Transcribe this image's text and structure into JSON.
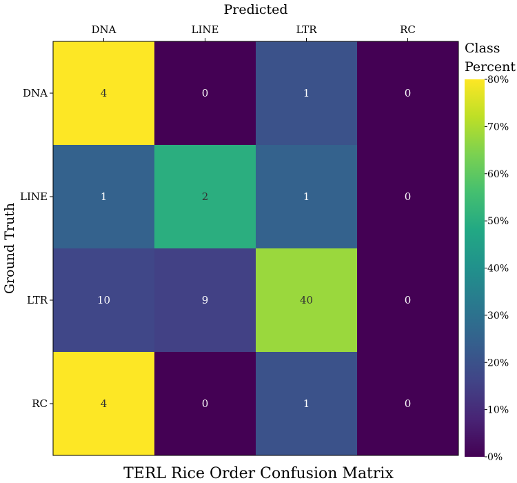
{
  "chart_data": {
    "type": "heatmap",
    "title": "TERL Rice Order Confusion Matrix",
    "xlabel": "Predicted",
    "ylabel": "Ground Truth",
    "x_categories": [
      "DNA",
      "LINE",
      "LTR",
      "RC"
    ],
    "y_categories": [
      "DNA",
      "LINE",
      "LTR",
      "RC"
    ],
    "counts": [
      [
        4,
        0,
        1,
        0
      ],
      [
        1,
        2,
        1,
        0
      ],
      [
        10,
        9,
        40,
        0
      ],
      [
        4,
        0,
        1,
        0
      ]
    ],
    "colorbar": {
      "label_lines": [
        "Class",
        "Percent"
      ],
      "range": [
        0,
        80
      ],
      "tick_values": [
        0,
        10,
        20,
        30,
        40,
        50,
        60,
        70,
        80
      ],
      "tick_labels": [
        "0%",
        "10%",
        "20%",
        "30%",
        "40%",
        "50%",
        "60%",
        "70%",
        "80%"
      ],
      "colormap": "viridis"
    }
  }
}
